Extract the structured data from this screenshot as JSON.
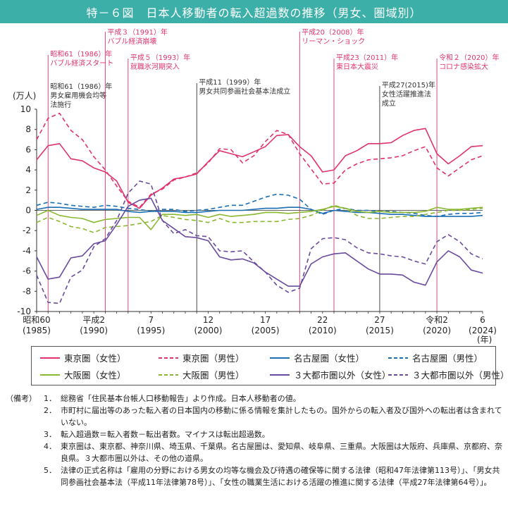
{
  "title": "特－６図　日本人移動者の転入超過数の推移（男女、圏域別）",
  "chart_data": {
    "type": "line",
    "y_unit": "(万人)",
    "x_unit": "(年)",
    "ylim": [
      -10,
      10
    ],
    "y_ticks": [
      10,
      8,
      6,
      4,
      2,
      0,
      -2,
      -4,
      -6,
      -8,
      -10
    ],
    "xlim": [
      1985,
      2024
    ],
    "x_ticks": [
      {
        "year": 1985,
        "l1": "昭和60",
        "l2": "(1985)"
      },
      {
        "year": 1990,
        "l1": "平成2",
        "l2": "(1990)"
      },
      {
        "year": 1995,
        "l1": "7",
        "l2": "(1995)"
      },
      {
        "year": 2000,
        "l1": "12",
        "l2": "(2000)"
      },
      {
        "year": 2005,
        "l1": "17",
        "l2": "(2005)"
      },
      {
        "year": 2010,
        "l1": "22",
        "l2": "(2010)"
      },
      {
        "year": 2015,
        "l1": "27",
        "l2": "(2015)"
      },
      {
        "year": 2020,
        "l1": "令和2",
        "l2": "(2020)"
      },
      {
        "year": 2024,
        "l1": "6",
        "l2": "(2024)"
      }
    ],
    "x": [
      1985,
      1986,
      1987,
      1988,
      1989,
      1990,
      1991,
      1992,
      1993,
      1994,
      1995,
      1996,
      1997,
      1998,
      1999,
      2000,
      2001,
      2002,
      2003,
      2004,
      2005,
      2006,
      2007,
      2008,
      2009,
      2010,
      2011,
      2012,
      2013,
      2014,
      2015,
      2016,
      2017,
      2018,
      2019,
      2020,
      2021,
      2022,
      2023,
      2024
    ],
    "series": [
      {
        "name": "東京圏（女性）",
        "color": "#e0336e",
        "dash": false,
        "values": [
          5.0,
          6.4,
          6.6,
          5.1,
          4.9,
          4.2,
          3.8,
          2.9,
          0.8,
          0.2,
          1.5,
          2.2,
          3.1,
          3.3,
          3.6,
          4.8,
          5.9,
          5.6,
          5.3,
          5.8,
          6.3,
          7.4,
          7.5,
          6.3,
          5.4,
          3.8,
          4.0,
          5.4,
          5.9,
          6.6,
          6.6,
          6.7,
          7.4,
          7.9,
          8.1,
          5.6,
          4.6,
          5.4,
          6.3,
          6.4
        ]
      },
      {
        "name": "東京圏（男性）",
        "color": "#e0336e",
        "dash": true,
        "values": [
          7.0,
          9.1,
          9.6,
          7.9,
          7.0,
          5.3,
          4.0,
          2.4,
          0.9,
          0.3,
          1.6,
          2.1,
          3.0,
          3.3,
          3.7,
          4.7,
          6.1,
          6.0,
          4.7,
          5.4,
          6.8,
          7.9,
          7.5,
          5.6,
          4.1,
          2.6,
          2.7,
          4.0,
          4.6,
          5.0,
          5.1,
          5.2,
          5.4,
          5.9,
          6.3,
          4.2,
          3.4,
          4.2,
          5.0,
          5.4
        ]
      },
      {
        "name": "名古屋圏（女性）",
        "color": "#1a6fb5",
        "dash": false,
        "values": [
          0.1,
          0.3,
          0.3,
          0.2,
          0.1,
          0.1,
          0.1,
          0.1,
          -0.1,
          -0.2,
          -0.1,
          -0.1,
          -0.1,
          -0.2,
          -0.2,
          -0.1,
          0.0,
          0.0,
          0.0,
          0.1,
          0.2,
          0.2,
          0.3,
          0.3,
          0.1,
          -0.3,
          0.0,
          -0.1,
          -0.2,
          -0.2,
          -0.3,
          -0.4,
          -0.4,
          -0.5,
          -0.6,
          -0.6,
          -0.6,
          -0.6,
          -0.6,
          -0.5
        ]
      },
      {
        "name": "名古屋圏（男性）",
        "color": "#1a6fb5",
        "dash": true,
        "values": [
          0.5,
          0.8,
          0.7,
          0.5,
          0.4,
          0.3,
          0.5,
          0.4,
          0.2,
          0.1,
          -0.1,
          0.1,
          0.1,
          -0.1,
          0.0,
          0.1,
          0.3,
          0.5,
          0.5,
          0.9,
          1.3,
          1.6,
          1.5,
          1.1,
          0.1,
          -0.4,
          0.0,
          0.2,
          0.0,
          0.0,
          -0.1,
          -0.1,
          -0.2,
          -0.3,
          -0.5,
          -0.6,
          -0.4,
          -0.3,
          -0.3,
          -0.2
        ]
      },
      {
        "name": "大阪圏（女性）",
        "color": "#8ab830",
        "dash": false,
        "values": [
          -0.5,
          0.0,
          -0.5,
          -0.7,
          -0.8,
          -1.2,
          -0.9,
          -0.8,
          -0.7,
          -0.7,
          -1.9,
          -0.4,
          -0.4,
          -0.5,
          -0.4,
          -0.7,
          -0.4,
          -0.6,
          -0.5,
          -0.4,
          -0.2,
          -0.2,
          -0.3,
          -0.2,
          -0.1,
          0.1,
          0.4,
          0.2,
          -0.1,
          -0.2,
          -0.1,
          -0.2,
          -0.2,
          -0.2,
          -0.1,
          0.3,
          0.1,
          0.1,
          0.2,
          0.3
        ]
      },
      {
        "name": "大阪圏（男性）",
        "color": "#8ab830",
        "dash": true,
        "values": [
          -1.2,
          -0.7,
          -1.1,
          -1.6,
          -1.8,
          -2.2,
          -1.7,
          -1.6,
          -1.5,
          -1.3,
          -1.1,
          -0.5,
          -0.7,
          -0.9,
          -1.0,
          -1.2,
          -0.8,
          -1.2,
          -1.2,
          -1.1,
          -1.1,
          -1.1,
          -0.9,
          -0.8,
          -0.5,
          0.0,
          0.5,
          0.2,
          -0.5,
          -0.8,
          -0.8,
          -0.7,
          -0.6,
          -0.6,
          -0.4,
          -0.2,
          0.0,
          0.0,
          0.1,
          0.2
        ]
      },
      {
        "name": "３大都市圏以外（女性）",
        "color": "#6a4b9e",
        "dash": false,
        "values": [
          -4.6,
          -6.8,
          -6.6,
          -4.7,
          -4.5,
          -3.3,
          -3.0,
          -1.4,
          0.4,
          1.0,
          1.2,
          -1.0,
          -1.8,
          -2.6,
          -2.7,
          -3.0,
          -4.6,
          -4.9,
          -4.8,
          -5.2,
          -6.1,
          -6.8,
          -7.5,
          -7.5,
          -5.3,
          -4.6,
          -4.3,
          -4.2,
          -5.0,
          -5.8,
          -6.3,
          -6.3,
          -6.4,
          -7.1,
          -7.4,
          -5.1,
          -4.0,
          -4.6,
          -5.9,
          -6.2
        ]
      },
      {
        "name": "３大都市圏以外（男性）",
        "color": "#6a4b9e",
        "dash": true,
        "values": [
          -6.4,
          -9.1,
          -9.2,
          -6.6,
          -5.9,
          -3.6,
          -2.8,
          -1.0,
          1.7,
          2.9,
          2.6,
          -1.0,
          -2.3,
          -1.9,
          -2.5,
          -2.6,
          -4.0,
          -4.1,
          -4.0,
          -5.1,
          -6.1,
          -7.4,
          -8.1,
          -7.7,
          -3.8,
          -2.8,
          -2.7,
          -2.9,
          -3.7,
          -4.2,
          -4.3,
          -4.5,
          -4.6,
          -5.0,
          -5.3,
          -3.1,
          -2.4,
          -3.1,
          -4.3,
          -4.8
        ]
      }
    ],
    "annotations": [
      {
        "year": 1986,
        "l1": "昭和61（1986）年",
        "l2": "バブル経済スタート",
        "color": "#e0336e"
      },
      {
        "year": 1986,
        "l1": "昭和61（1986）年",
        "l2": "男女雇用機会均等",
        "l3": "法施行",
        "color": "#333333"
      },
      {
        "year": 1991,
        "l1": "平成３（1991）年",
        "l2": "バブル経済崩壊",
        "color": "#e0336e"
      },
      {
        "year": 1993,
        "l1": "平成５（1993）年",
        "l2": "就職氷河期突入",
        "color": "#e0336e"
      },
      {
        "year": 1999,
        "l1": "平成11（1999）年",
        "l2": "男女共同参画社会基本法成立",
        "color": "#333333"
      },
      {
        "year": 2008,
        "l1": "平成20（2008）年",
        "l2": "リーマン・ショック",
        "color": "#e0336e"
      },
      {
        "year": 2011,
        "l1": "平成23（2011）年",
        "l2": "東日本大震災",
        "color": "#e0336e"
      },
      {
        "year": 2015,
        "l1": "平成27(2015)年",
        "l2": "女性活躍推進法",
        "l3": "成立",
        "color": "#333333"
      },
      {
        "year": 2020,
        "l1": "令和２（2020）年",
        "l2": "コロナ感染拡大",
        "color": "#e0336e"
      }
    ]
  },
  "notes": {
    "head": "（備考）",
    "items": [
      {
        "num": "1．",
        "text": "総務省「住民基本台帳人口移動報告」より作成。日本人移動者の値。"
      },
      {
        "num": "2．",
        "text": "市町村に届出等のあった転入者の日本国内の移動に係る情報を集計したもの。国外からの転入者及び国外への転出者は含まれていない。"
      },
      {
        "num": "3．",
        "text": "転入超過数＝転入者数－転出者数。マイナスは転出超過数。"
      },
      {
        "num": "4．",
        "text": "東京圏は、東京都、神奈川県、埼玉県、千葉県。名古屋圏は、愛知県、岐阜県、三重県。大阪圏は大阪府、兵庫県、京都府、奈良県。３大都市圏以外は、その他の道県。"
      },
      {
        "num": "5．",
        "text": "法律の正式名称は「雇用の分野における男女の均等な機会及び待遇の確保等に関する法律（昭和47年法律第113号）」、「男女共同参画社会基本法（平成11年法律第78号）」、「女性の職業生活における活躍の推進に関する法律（平成27年法律第64号）」。"
      }
    ]
  }
}
